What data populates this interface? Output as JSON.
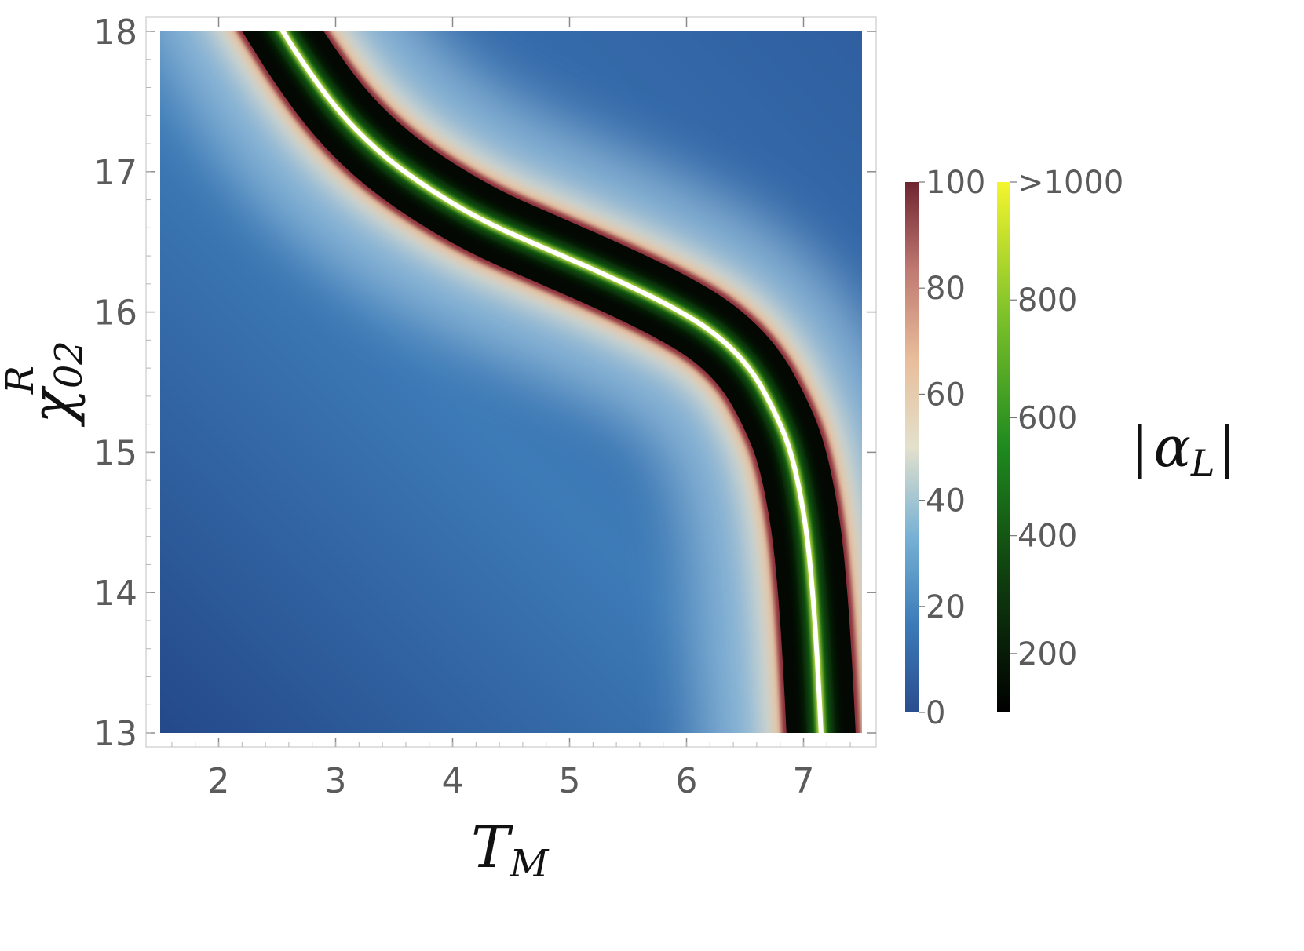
{
  "chart_data": {
    "type": "heatmap",
    "title": "",
    "xlabel": {
      "base": "T",
      "sub": "M"
    },
    "ylabel": {
      "base": "χ",
      "sub": "02",
      "sup": "R"
    },
    "xlim": [
      1.5,
      7.5
    ],
    "ylim": [
      13,
      18
    ],
    "x_ticks": [
      2,
      3,
      4,
      5,
      6,
      7
    ],
    "y_ticks": [
      13,
      14,
      15,
      16,
      17,
      18
    ],
    "colorbar_label": {
      "base": "α",
      "sub": "L",
      "abs": "|"
    },
    "colorbars": [
      {
        "name": "low",
        "range": [
          0,
          100
        ],
        "ticks": [
          "0",
          "20",
          "40",
          "60",
          "80",
          "100"
        ],
        "colors": [
          "#2a4d8e",
          "#3c7bb8",
          "#78b2d5",
          "#e3e1cc",
          "#e8bd9a",
          "#c07a72",
          "#6e2530"
        ]
      },
      {
        "name": "high",
        "range": [
          100,
          1000
        ],
        "ticks": [
          "200",
          "400",
          "600",
          "800",
          ">1000"
        ],
        "colors": [
          "#000000",
          "#0f3d0f",
          "#1f8a1f",
          "#7ec22a",
          "#f5f52e"
        ]
      }
    ],
    "ridge_curve": {
      "T": [
        7.15,
        7.12,
        7.08,
        7.02,
        6.9,
        6.75,
        6.55,
        6.25,
        5.85,
        5.35,
        4.8,
        4.25,
        3.75,
        3.35,
        3.0,
        2.7,
        2.55
      ],
      "chi": [
        13.0,
        13.5,
        14.0,
        14.5,
        15.0,
        15.3,
        15.6,
        15.85,
        16.05,
        16.25,
        16.45,
        16.65,
        16.9,
        17.15,
        17.45,
        17.8,
        18.0
      ]
    }
  }
}
